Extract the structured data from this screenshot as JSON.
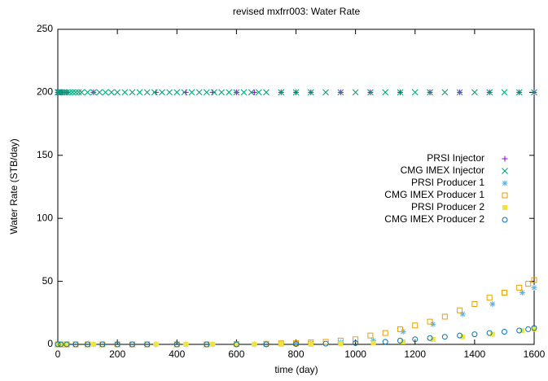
{
  "chart_data": {
    "type": "scatter",
    "title": "revised mxfrr003: Water Rate",
    "x_label": "time (day)",
    "y_label": "Water Rate (STB/day)",
    "xlim": [
      0,
      1600
    ],
    "ylim": [
      0,
      250
    ],
    "xticks": [
      0,
      200,
      400,
      600,
      800,
      1000,
      1200,
      1400,
      1600
    ],
    "yticks": [
      0,
      50,
      100,
      150,
      200,
      250
    ],
    "grid": false,
    "legend": "right",
    "series": [
      {
        "name": "PRSI Injector",
        "color": "#9400d3",
        "marker": "plus",
        "x": [
          0,
          5,
          15,
          30,
          120,
          330,
          430,
          520,
          600,
          660,
          750,
          800,
          850,
          950,
          1050,
          1150,
          1250,
          1350,
          1450,
          1550,
          1600
        ],
        "values": [
          200,
          200,
          200,
          200,
          200,
          200,
          200,
          200,
          200,
          200,
          200,
          200,
          200,
          200,
          200,
          200,
          200,
          200,
          200,
          200,
          200
        ]
      },
      {
        "name": "CMG IMEX Injector",
        "color": "#009e73",
        "marker": "cross",
        "x": [
          0,
          2,
          5,
          10,
          15,
          20,
          30,
          40,
          50,
          60,
          70,
          80,
          100,
          120,
          140,
          160,
          180,
          200,
          225,
          250,
          275,
          300,
          325,
          350,
          375,
          400,
          425,
          450,
          475,
          500,
          525,
          550,
          575,
          600,
          625,
          650,
          675,
          700,
          750,
          800,
          850,
          900,
          950,
          1000,
          1050,
          1100,
          1150,
          1200,
          1250,
          1300,
          1350,
          1400,
          1450,
          1500,
          1550,
          1600
        ],
        "values": [
          200,
          200,
          200,
          200,
          200,
          200,
          200,
          200,
          200,
          200,
          200,
          200,
          200,
          200,
          200,
          200,
          200,
          200,
          200,
          200,
          200,
          200,
          200,
          200,
          200,
          200,
          200,
          200,
          200,
          200,
          200,
          200,
          200,
          200,
          200,
          200,
          200,
          200,
          200,
          200,
          200,
          200,
          200,
          200,
          200,
          200,
          200,
          200,
          200,
          200,
          200,
          200,
          200,
          200,
          200,
          200
        ]
      },
      {
        "name": "PRSI Producer 1",
        "color": "#56b4e9",
        "marker": "star",
        "x": [
          0,
          5,
          15,
          30,
          120,
          330,
          430,
          520,
          600,
          660,
          750,
          800,
          850,
          950,
          1060,
          1160,
          1260,
          1360,
          1460,
          1560,
          1600
        ],
        "values": [
          0,
          0,
          0,
          0,
          0,
          0,
          0,
          0,
          0,
          0,
          0.3,
          0.5,
          0.8,
          1.5,
          3,
          10,
          16,
          24,
          32,
          41,
          45
        ]
      },
      {
        "name": "CMG IMEX Producer 1",
        "color": "#e69f00",
        "marker": "square",
        "x": [
          0,
          10,
          30,
          60,
          100,
          150,
          200,
          250,
          300,
          400,
          500,
          600,
          700,
          750,
          800,
          850,
          900,
          950,
          1000,
          1050,
          1100,
          1150,
          1200,
          1250,
          1300,
          1350,
          1400,
          1450,
          1500,
          1550,
          1580,
          1600
        ],
        "values": [
          0,
          0,
          0,
          0,
          0,
          0,
          0,
          0,
          0,
          0,
          0,
          0.2,
          0.5,
          0.8,
          1,
          1.5,
          2,
          3,
          4,
          7,
          9,
          12,
          15,
          18,
          22,
          27,
          32,
          37,
          41,
          45,
          48,
          51
        ]
      },
      {
        "name": "PRSI Producer 2",
        "color": "#f0e442",
        "marker": "filled-square",
        "x": [
          0,
          5,
          15,
          30,
          120,
          330,
          430,
          520,
          600,
          660,
          750,
          850,
          950,
          1060,
          1160,
          1260,
          1360,
          1460,
          1560,
          1600
        ],
        "values": [
          0,
          0,
          0,
          0,
          0,
          0,
          0,
          0,
          0,
          0,
          0,
          0,
          0.5,
          1,
          2,
          4,
          6,
          8,
          11,
          12
        ]
      },
      {
        "name": "CMG IMEX Producer 2",
        "color": "#0072b2",
        "marker": "circle",
        "x": [
          0,
          10,
          30,
          60,
          100,
          150,
          200,
          250,
          300,
          400,
          500,
          600,
          700,
          800,
          900,
          1000,
          1100,
          1150,
          1200,
          1250,
          1300,
          1350,
          1400,
          1450,
          1500,
          1550,
          1580,
          1600
        ],
        "values": [
          0,
          0,
          0,
          0,
          0,
          0,
          0,
          0,
          0,
          0,
          0,
          0,
          0,
          0.3,
          0.6,
          1,
          2,
          3,
          4,
          5,
          6,
          7,
          8,
          9,
          10,
          11,
          12,
          13
        ]
      }
    ]
  }
}
